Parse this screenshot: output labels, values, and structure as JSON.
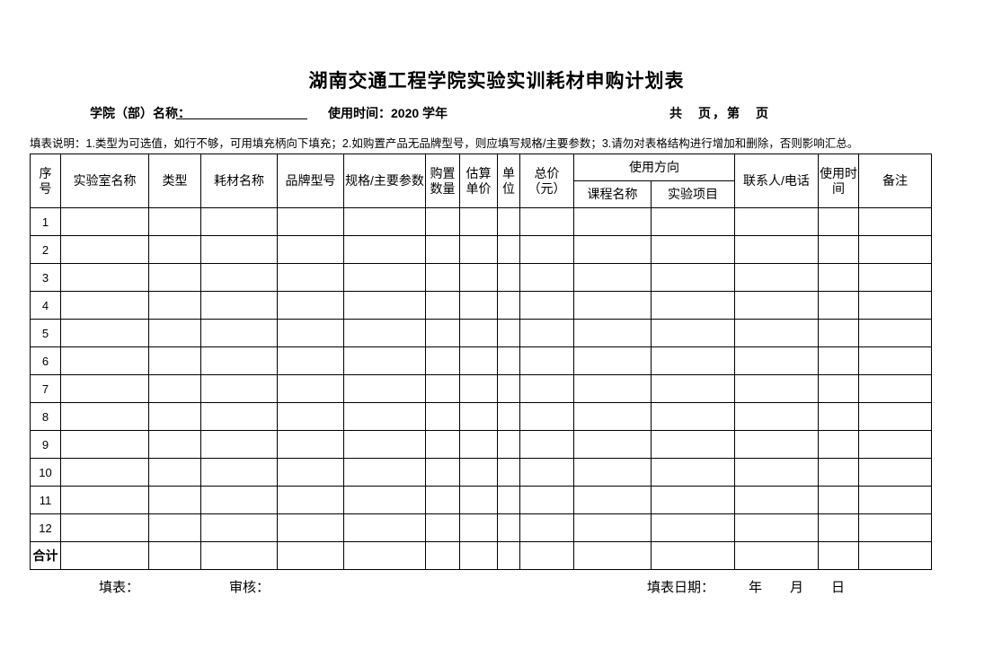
{
  "title": "湖南交通工程学院实验实训耗材申购计划表",
  "info_bar": {
    "department_label": "学院（部）名称：",
    "usage_time_label": "使用时间：",
    "usage_time_value": "2020 学年",
    "page_count_text": "共　页，第　页"
  },
  "instructions": "填表说明：1.类型为可选值，如行不够，可用填充柄向下填充；2.如购置产品无品牌型号，则应填写规格/主要参数；3.请勿对表格结构进行增加和删除，否则影响汇总。",
  "table": {
    "pre_headers": [
      "序\n号",
      "实验室名称",
      "类型",
      "耗材名称",
      "品牌型号",
      "规格/主要参数",
      "购置数量",
      "估算单价",
      "单位",
      "总价\n（元）"
    ],
    "group_header": "使用方向",
    "sub_headers": [
      "课程名称",
      "实验项目"
    ],
    "post_headers": [
      "联系人/电话",
      "使用时间",
      "备注"
    ],
    "row_numbers": [
      "1",
      "2",
      "3",
      "4",
      "5",
      "6",
      "7",
      "8",
      "9",
      "10",
      "11",
      "12"
    ],
    "total_label": "合计",
    "columns_count": 15
  },
  "footer": {
    "fill_label": "填表：",
    "review_label": "审核：",
    "date_label": "填表日期：",
    "date_placeholder": "年　月　日"
  },
  "colors": {
    "background": "#ffffff",
    "text": "#000000",
    "border": "#000000"
  }
}
